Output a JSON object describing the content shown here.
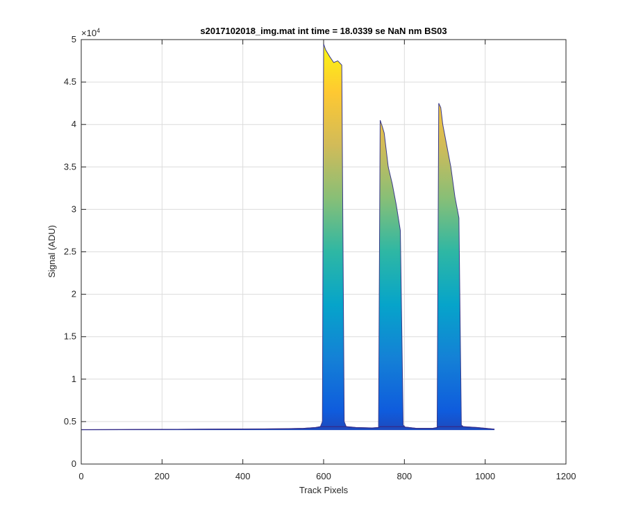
{
  "chart_data": {
    "type": "area",
    "title": "s2017102018_img.mat int time = 18.0339 se  NaN nm BS03",
    "xlabel": "Track Pixels",
    "ylabel": "Signal (ADU)",
    "xlim": [
      0,
      1200
    ],
    "ylim": [
      0,
      50000
    ],
    "xticks": [
      0,
      200,
      400,
      600,
      800,
      1000,
      1200
    ],
    "yticks": [
      0,
      5000,
      10000,
      15000,
      20000,
      25000,
      30000,
      35000,
      40000,
      45000,
      50000
    ],
    "ytick_labels": [
      "0",
      "0.5",
      "1",
      "1.5",
      "2",
      "2.5",
      "3",
      "3.5",
      "4",
      "4.5",
      "5"
    ],
    "y_exponent_label": "×10",
    "y_exponent_power": "4",
    "grid": true,
    "colormap": "parula",
    "colormap_stops": [
      "#352a87",
      "#0f5cdd",
      "#1481d6",
      "#06a4ca",
      "#2eb7a4",
      "#87bf77",
      "#d1bb59",
      "#fec832",
      "#f9fb0e"
    ],
    "series": [
      {
        "x": [
          0,
          100,
          200,
          300,
          400,
          500,
          550,
          580,
          592,
          597,
          600,
          605,
          615,
          625,
          635,
          645,
          651,
          656,
          680,
          720,
          736,
          740,
          745,
          750,
          760,
          770,
          780,
          790,
          797,
          802,
          830,
          870,
          881,
          885,
          890,
          895,
          905,
          915,
          925,
          935,
          941,
          946,
          980,
          1023
        ],
        "y": [
          4050,
          4060,
          4080,
          4100,
          4120,
          4150,
          4200,
          4300,
          4400,
          5000,
          49500,
          48800,
          48000,
          47300,
          47500,
          47000,
          5000,
          4400,
          4300,
          4250,
          4300,
          40500,
          39800,
          39000,
          35000,
          33000,
          30500,
          27500,
          4600,
          4350,
          4200,
          4200,
          4300,
          42500,
          42000,
          40000,
          37500,
          35000,
          31500,
          29000,
          4600,
          4400,
          4300,
          4100
        ]
      }
    ]
  }
}
